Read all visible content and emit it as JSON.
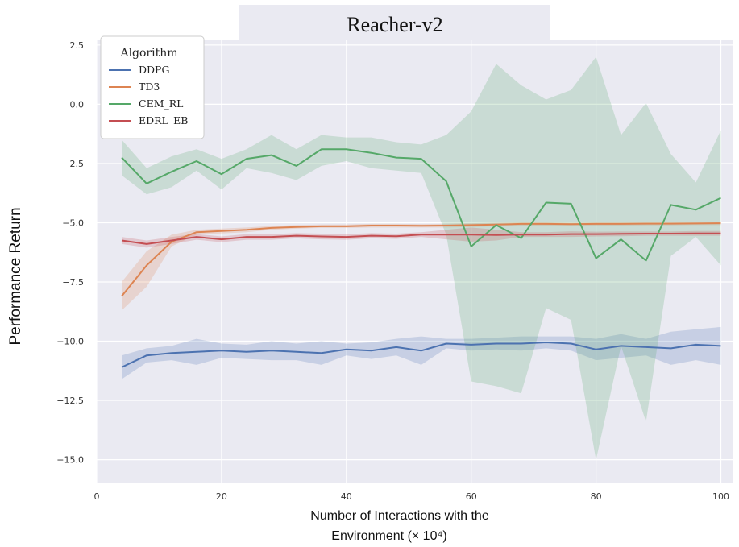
{
  "chart_data": {
    "type": "line",
    "title": "Reacher-v2",
    "xlabel_line1": "Number of Interactions with the",
    "xlabel_line2": "Environment (× 10⁴)",
    "ylabel": "Performance Return",
    "xlim": [
      0,
      102
    ],
    "ylim": [
      -16,
      2.7
    ],
    "xticks": [
      0,
      20,
      40,
      60,
      80,
      100
    ],
    "yticks": [
      2.5,
      0.0,
      -2.5,
      -5.0,
      -7.5,
      -10.0,
      -12.5,
      -15.0
    ],
    "ytick_labels": [
      "2.5",
      "0.0",
      "−2.5",
      "−5.0",
      "−7.5",
      "−10.0",
      "−12.5",
      "−15.0"
    ],
    "grid": true,
    "legend": {
      "title": "Algorithm",
      "position": "top-left"
    },
    "x": [
      4,
      8,
      12,
      16,
      20,
      24,
      28,
      32,
      36,
      40,
      44,
      48,
      52,
      56,
      60,
      64,
      68,
      72,
      76,
      80,
      84,
      88,
      92,
      96,
      100
    ],
    "series": [
      {
        "name": "DDPG",
        "color": "#4c72b0",
        "values": [
          -11.1,
          -10.6,
          -10.5,
          -10.45,
          -10.4,
          -10.45,
          -10.4,
          -10.45,
          -10.5,
          -10.35,
          -10.4,
          -10.25,
          -10.4,
          -10.1,
          -10.15,
          -10.1,
          -10.1,
          -10.05,
          -10.1,
          -10.35,
          -10.2,
          -10.25,
          -10.3,
          -10.15,
          -10.2
        ],
        "lower": [
          -11.6,
          -10.9,
          -10.8,
          -11.0,
          -10.7,
          -10.75,
          -10.8,
          -10.8,
          -11.0,
          -10.6,
          -10.75,
          -10.6,
          -11.0,
          -10.3,
          -10.4,
          -10.35,
          -10.4,
          -10.3,
          -10.4,
          -10.8,
          -10.7,
          -10.6,
          -11.0,
          -10.8,
          -11.0
        ],
        "upper": [
          -10.6,
          -10.3,
          -10.2,
          -9.9,
          -10.1,
          -10.15,
          -10.0,
          -10.1,
          -10.0,
          -10.1,
          -10.05,
          -9.9,
          -9.8,
          -9.9,
          -9.9,
          -9.85,
          -9.8,
          -9.8,
          -9.8,
          -9.9,
          -9.7,
          -9.9,
          -9.6,
          -9.5,
          -9.4
        ]
      },
      {
        "name": "TD3",
        "color": "#dd8452",
        "values": [
          -8.1,
          -6.8,
          -5.8,
          -5.4,
          -5.35,
          -5.3,
          -5.22,
          -5.18,
          -5.15,
          -5.15,
          -5.12,
          -5.12,
          -5.13,
          -5.12,
          -5.1,
          -5.08,
          -5.05,
          -5.05,
          -5.06,
          -5.05,
          -5.05,
          -5.04,
          -5.04,
          -5.03,
          -5.02
        ],
        "lower": [
          -8.7,
          -7.7,
          -6.0,
          -5.5,
          -5.45,
          -5.4,
          -5.3,
          -5.25,
          -5.22,
          -5.22,
          -5.2,
          -5.2,
          -5.2,
          -5.2,
          -5.18,
          -5.15,
          -5.13,
          -5.12,
          -5.12,
          -5.12,
          -5.12,
          -5.11,
          -5.11,
          -5.1,
          -5.1
        ],
        "upper": [
          -7.5,
          -6.2,
          -5.5,
          -5.3,
          -5.25,
          -5.2,
          -5.14,
          -5.1,
          -5.08,
          -5.08,
          -5.05,
          -5.05,
          -5.06,
          -5.05,
          -5.02,
          -5.0,
          -4.98,
          -4.98,
          -5.0,
          -4.98,
          -4.98,
          -4.97,
          -4.97,
          -4.96,
          -4.95
        ]
      },
      {
        "name": "CEM_RL",
        "color": "#55a868",
        "values": [
          -2.25,
          -3.35,
          -2.85,
          -2.4,
          -2.95,
          -2.3,
          -2.15,
          -2.6,
          -1.9,
          -1.9,
          -2.05,
          -2.25,
          -2.3,
          -3.25,
          -6.0,
          -5.1,
          -5.65,
          -4.15,
          -4.2,
          -6.5,
          -5.7,
          -6.6,
          -4.25,
          -4.45,
          -3.95
        ],
        "lower": [
          -3.0,
          -3.8,
          -3.5,
          -2.8,
          -3.6,
          -2.7,
          -2.9,
          -3.2,
          -2.6,
          -2.4,
          -2.7,
          -2.8,
          -2.9,
          -5.5,
          -11.7,
          -11.9,
          -12.2,
          -8.6,
          -9.1,
          -15.0,
          -10.2,
          -13.4,
          -6.4,
          -5.6,
          -6.8
        ],
        "upper": [
          -1.5,
          -2.7,
          -2.2,
          -1.9,
          -2.3,
          -1.9,
          -1.3,
          -1.9,
          -1.3,
          -1.4,
          -1.4,
          -1.6,
          -1.7,
          -1.3,
          -0.3,
          1.7,
          0.8,
          0.2,
          0.6,
          2.0,
          -1.3,
          0.05,
          -2.1,
          -3.3,
          -1.1
        ]
      },
      {
        "name": "EDRL_EB",
        "color": "#c44e52",
        "values": [
          -5.75,
          -5.9,
          -5.75,
          -5.6,
          -5.7,
          -5.6,
          -5.6,
          -5.55,
          -5.58,
          -5.6,
          -5.55,
          -5.57,
          -5.5,
          -5.5,
          -5.5,
          -5.52,
          -5.5,
          -5.5,
          -5.48,
          -5.48,
          -5.47,
          -5.46,
          -5.46,
          -5.45,
          -5.45
        ],
        "lower": [
          -5.9,
          -6.05,
          -5.9,
          -5.72,
          -5.82,
          -5.72,
          -5.72,
          -5.66,
          -5.7,
          -5.72,
          -5.66,
          -5.68,
          -5.6,
          -5.7,
          -5.8,
          -5.75,
          -5.6,
          -5.6,
          -5.6,
          -5.58,
          -5.57,
          -5.55,
          -5.55,
          -5.55,
          -5.55
        ],
        "upper": [
          -5.6,
          -5.75,
          -5.6,
          -5.48,
          -5.58,
          -5.48,
          -5.48,
          -5.44,
          -5.46,
          -5.48,
          -5.44,
          -5.46,
          -5.4,
          -5.3,
          -5.2,
          -5.3,
          -5.4,
          -5.4,
          -5.36,
          -5.38,
          -5.37,
          -5.37,
          -5.37,
          -5.35,
          -5.35
        ]
      }
    ]
  }
}
